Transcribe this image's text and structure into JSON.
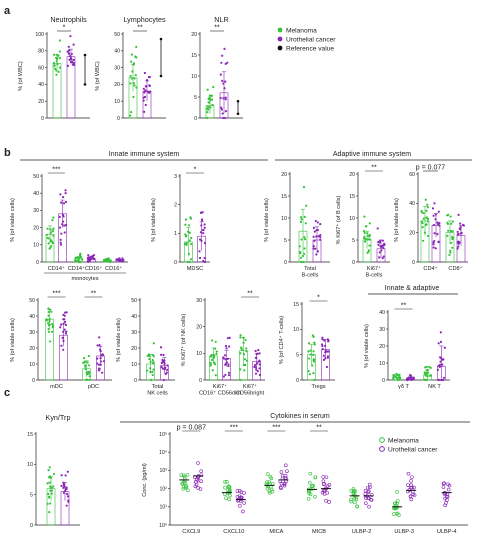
{
  "panels": {
    "a": "a",
    "b": "b",
    "c": "c"
  },
  "colors": {
    "green": "#35c23a",
    "purple": "#8a27b5",
    "black": "#111111"
  },
  "legend_a": [
    {
      "label": "Melanoma",
      "color": "#35c23a",
      "shape": "dot"
    },
    {
      "label": "Urothelial cancer",
      "color": "#8a27b5",
      "shape": "dot"
    },
    {
      "label": "Reference value",
      "color": "#111111",
      "shape": "dot"
    }
  ],
  "legend_c": [
    {
      "label": "Melanoma",
      "color": "#35c23a",
      "shape": "ring"
    },
    {
      "label": "Urothelial cancer",
      "color": "#8a27b5",
      "shape": "ring"
    }
  ],
  "section_headers": {
    "innate": "Innate immune system",
    "adaptive": "Adaptive immune system",
    "innate_adaptive": "Innate & adaptive",
    "cytokines": "Cytokines in serum"
  },
  "chart_data": [
    {
      "id": "neutrophils",
      "panel": "a",
      "type": "scatter",
      "title": "Neutrophils",
      "ylabel": "% (of WBC)",
      "ylim": [
        0,
        100
      ],
      "yticks": [
        0,
        20,
        40,
        60,
        80,
        100
      ],
      "groups": [
        {
          "series": "Melanoma",
          "mean": 65,
          "sd": 10
        },
        {
          "series": "Urothelial cancer",
          "mean": 73,
          "sd": 9
        }
      ],
      "reference": {
        "low": 40,
        "high": 75
      },
      "significance": "*"
    },
    {
      "id": "lymphocytes",
      "panel": "a",
      "type": "scatter",
      "title": "Lymphocytes",
      "ylabel": "% (of WBC)",
      "ylim": [
        0,
        50
      ],
      "yticks": [
        0,
        10,
        20,
        30,
        40,
        50
      ],
      "groups": [
        {
          "series": "Melanoma",
          "mean": 24,
          "sd": 8
        },
        {
          "series": "Urothelial cancer",
          "mean": 16,
          "sd": 6
        }
      ],
      "reference": {
        "low": 25,
        "high": 47
      },
      "significance": "**"
    },
    {
      "id": "nlr",
      "panel": "a",
      "type": "scatter",
      "title": "NLR",
      "ylabel": "",
      "ylim": [
        0,
        20
      ],
      "yticks": [
        0,
        5,
        10,
        15,
        20
      ],
      "groups": [
        {
          "series": "Melanoma",
          "mean": 3,
          "sd": 2
        },
        {
          "series": "Urothelial cancer",
          "mean": 6,
          "sd": 5
        }
      ],
      "reference": {
        "low": 1,
        "high": 4
      },
      "significance": "**"
    },
    {
      "id": "monocytes",
      "panel": "b",
      "type": "scatter",
      "title": "",
      "ylabel": "% (of viable cells)",
      "ylim": [
        0,
        50
      ],
      "yticks": [
        0,
        10,
        20,
        30,
        40,
        50
      ],
      "categories": [
        "CD14⁺",
        "CD14⁺CD16⁺",
        "CD16⁺"
      ],
      "group_label": "monocytes",
      "groups": [
        {
          "cat": 0,
          "series": "Melanoma",
          "mean": 16,
          "sd": 5
        },
        {
          "cat": 0,
          "series": "Urothelial cancer",
          "mean": 28,
          "sd": 8
        },
        {
          "cat": 1,
          "series": "Melanoma",
          "mean": 2,
          "sd": 1
        },
        {
          "cat": 1,
          "series": "Urothelial cancer",
          "mean": 2,
          "sd": 1
        },
        {
          "cat": 2,
          "series": "Melanoma",
          "mean": 1,
          "sd": 0.5
        },
        {
          "cat": 2,
          "series": "Urothelial cancer",
          "mean": 1,
          "sd": 0.5
        }
      ],
      "significance": [
        {
          "cat": 0,
          "text": "***"
        }
      ]
    },
    {
      "id": "mdsc",
      "panel": "b",
      "type": "scatter",
      "title": "",
      "ylabel": "% (of viable cells)",
      "ylim": [
        0,
        3
      ],
      "yticks": [
        0,
        1,
        2,
        3
      ],
      "categories": [
        "MDSC"
      ],
      "groups": [
        {
          "cat": 0,
          "series": "Melanoma",
          "mean": 0.7,
          "sd": 0.5
        },
        {
          "cat": 0,
          "series": "Urothelial cancer",
          "mean": 0.9,
          "sd": 0.5
        }
      ],
      "significance": [
        {
          "cat": 0,
          "text": "*"
        }
      ]
    },
    {
      "id": "total_bcells",
      "panel": "b",
      "type": "scatter",
      "title": "",
      "ylabel": "% (of viable cells)",
      "ylim": [
        0,
        20
      ],
      "yticks": [
        0,
        5,
        10,
        15,
        20
      ],
      "categories": [
        "Total B-cells"
      ],
      "groups": [
        {
          "cat": 0,
          "series": "Melanoma",
          "mean": 7,
          "sd": 5
        },
        {
          "cat": 0,
          "series": "Urothelial cancer",
          "mean": 5,
          "sd": 3
        }
      ]
    },
    {
      "id": "ki67_bcells",
      "panel": "b",
      "type": "scatter",
      "title": "",
      "ylabel": "% Ki67⁺ (of B cells)",
      "ylim": [
        0,
        20
      ],
      "yticks": [
        0,
        5,
        10,
        15,
        20
      ],
      "categories": [
        "Ki67⁺ B-cells"
      ],
      "groups": [
        {
          "cat": 0,
          "series": "Melanoma",
          "mean": 5,
          "sd": 2
        },
        {
          "cat": 0,
          "series": "Urothelial cancer",
          "mean": 3,
          "sd": 2
        }
      ],
      "significance": [
        {
          "cat": 0,
          "text": "**"
        }
      ]
    },
    {
      "id": "cd4_cd8",
      "panel": "b",
      "type": "scatter",
      "title": "",
      "ylabel": "% (of viable cells)",
      "ylim": [
        0,
        60
      ],
      "yticks": [
        0,
        20,
        40,
        60
      ],
      "categories": [
        "CD4⁺",
        "CD8⁺"
      ],
      "groups": [
        {
          "cat": 0,
          "series": "Melanoma",
          "mean": 28,
          "sd": 10
        },
        {
          "cat": 0,
          "series": "Urothelial cancer",
          "mean": 25,
          "sd": 8
        },
        {
          "cat": 1,
          "series": "Melanoma",
          "mean": 20,
          "sd": 8
        },
        {
          "cat": 1,
          "series": "Urothelial cancer",
          "mean": 18,
          "sd": 7
        }
      ],
      "significance": [
        {
          "cat": 0,
          "text": "p = 0.077"
        }
      ]
    },
    {
      "id": "dcs",
      "panel": "b",
      "type": "scatter",
      "title": "",
      "ylabel": "% (of viable cells)",
      "ylim": [
        0,
        50
      ],
      "yticks": [
        0,
        10,
        20,
        30,
        40,
        50
      ],
      "categories": [
        "mDC",
        "pDC"
      ],
      "groups": [
        {
          "cat": 0,
          "series": "Melanoma",
          "mean": 38,
          "sd": 6
        },
        {
          "cat": 0,
          "series": "Urothelial cancer",
          "mean": 28,
          "sd": 7
        },
        {
          "cat": 1,
          "series": "Melanoma",
          "mean": 7,
          "sd": 5
        },
        {
          "cat": 1,
          "series": "Urothelial cancer",
          "mean": 15,
          "sd": 6
        }
      ],
      "significance": [
        {
          "cat": 0,
          "text": "***"
        },
        {
          "cat": 1,
          "text": "**"
        }
      ]
    },
    {
      "id": "total_nk",
      "panel": "b",
      "type": "scatter",
      "title": "",
      "ylabel": "% (of viable cells)",
      "ylim": [
        0,
        50
      ],
      "yticks": [
        0,
        10,
        20,
        30,
        40,
        50
      ],
      "categories": [
        "Total NK cells"
      ],
      "groups": [
        {
          "cat": 0,
          "series": "Melanoma",
          "mean": 10,
          "sd": 6
        },
        {
          "cat": 0,
          "series": "Urothelial cancer",
          "mean": 9,
          "sd": 5
        }
      ]
    },
    {
      "id": "ki67_nk",
      "panel": "b",
      "type": "scatter",
      "title": "",
      "ylabel": "% Ki67⁺ (of NK cells)",
      "ylim": [
        0,
        30
      ],
      "yticks": [
        0,
        10,
        20,
        30
      ],
      "categories": [
        "Ki67⁺ CD16⁺ CD56dim",
        "Ki67⁺ CD56bright"
      ],
      "groups": [
        {
          "cat": 0,
          "series": "Melanoma",
          "mean": 9,
          "sd": 3
        },
        {
          "cat": 0,
          "series": "Urothelial cancer",
          "mean": 8,
          "sd": 3
        },
        {
          "cat": 1,
          "series": "Melanoma",
          "mean": 11,
          "sd": 5
        },
        {
          "cat": 1,
          "series": "Urothelial cancer",
          "mean": 7,
          "sd": 3
        }
      ],
      "significance": [
        {
          "cat": 1,
          "text": "**"
        }
      ]
    },
    {
      "id": "tregs",
      "panel": "b",
      "type": "scatter",
      "title": "",
      "ylabel": "% (of CD4⁺ T-cells)",
      "ylim": [
        0,
        15
      ],
      "yticks": [
        0,
        5,
        10,
        15
      ],
      "categories": [
        "Tregs"
      ],
      "groups": [
        {
          "cat": 0,
          "series": "Melanoma",
          "mean": 5,
          "sd": 2
        },
        {
          "cat": 0,
          "series": "Urothelial cancer",
          "mean": 6,
          "sd": 2
        }
      ],
      "significance": [
        {
          "cat": 0,
          "text": "*"
        }
      ]
    },
    {
      "id": "gd_nkt",
      "panel": "b",
      "type": "scatter",
      "title": "",
      "ylabel": "% (of viable cells)",
      "ylim": [
        0,
        40
      ],
      "yticks": [
        0,
        10,
        20,
        30,
        40
      ],
      "categories": [
        "γδ T",
        "NK T"
      ],
      "groups": [
        {
          "cat": 0,
          "series": "Melanoma",
          "mean": 1.5,
          "sd": 1
        },
        {
          "cat": 0,
          "series": "Urothelial cancer",
          "mean": 1,
          "sd": 1
        },
        {
          "cat": 1,
          "series": "Melanoma",
          "mean": 3,
          "sd": 3
        },
        {
          "cat": 1,
          "series": "Urothelial cancer",
          "mean": 8,
          "sd": 12
        }
      ],
      "significance": [
        {
          "cat": 0,
          "text": "**"
        }
      ]
    },
    {
      "id": "kyn_trp",
      "panel": "c",
      "type": "scatter",
      "title": "Kyn/Trp",
      "ylabel": "",
      "ylim": [
        0,
        15
      ],
      "yticks": [
        0,
        5,
        10,
        15
      ],
      "groups": [
        {
          "series": "Melanoma",
          "mean": 6,
          "sd": 2
        },
        {
          "series": "Urothelial cancer",
          "mean": 5.5,
          "sd": 1.5
        }
      ]
    },
    {
      "id": "cytokines",
      "panel": "c",
      "type": "scatter",
      "title": "Cytokines in serum",
      "ylabel": "Conc. (pg/ml)",
      "yscale": "log",
      "ylim": [
        1,
        100000
      ],
      "yticks": [
        1,
        10,
        100,
        1000,
        10000,
        100000
      ],
      "ytick_labels": [
        "10⁰",
        "10¹",
        "10²",
        "10³",
        "10⁴",
        "10⁵"
      ],
      "categories": [
        "CXCL9",
        "CXCL10",
        "MICA",
        "MICB",
        "ULBP-2",
        "ULBP-3",
        "ULBP-4"
      ],
      "groups": [
        {
          "cat": 0,
          "series": "Melanoma",
          "median": 300
        },
        {
          "cat": 0,
          "series": "Urothelial cancer",
          "median": 500
        },
        {
          "cat": 1,
          "series": "Melanoma",
          "median": 60
        },
        {
          "cat": 1,
          "series": "Urothelial cancer",
          "median": 25
        },
        {
          "cat": 2,
          "series": "Melanoma",
          "median": 150
        },
        {
          "cat": 2,
          "series": "Urothelial cancer",
          "median": 300
        },
        {
          "cat": 3,
          "series": "Melanoma",
          "median": 90
        },
        {
          "cat": 3,
          "series": "Urothelial cancer",
          "median": 100
        },
        {
          "cat": 4,
          "series": "Melanoma",
          "median": 40
        },
        {
          "cat": 4,
          "series": "Urothelial cancer",
          "median": 40
        },
        {
          "cat": 5,
          "series": "Melanoma",
          "median": 10
        },
        {
          "cat": 5,
          "series": "Urothelial cancer",
          "median": 80
        },
        {
          "cat": 6,
          "series": "Urothelial cancer",
          "median": 60
        }
      ],
      "significance": [
        {
          "cat": 0,
          "text": "p = 0.087"
        },
        {
          "cat": 1,
          "text": "***"
        },
        {
          "cat": 2,
          "text": "***"
        },
        {
          "cat": 3,
          "text": "**"
        }
      ]
    }
  ]
}
